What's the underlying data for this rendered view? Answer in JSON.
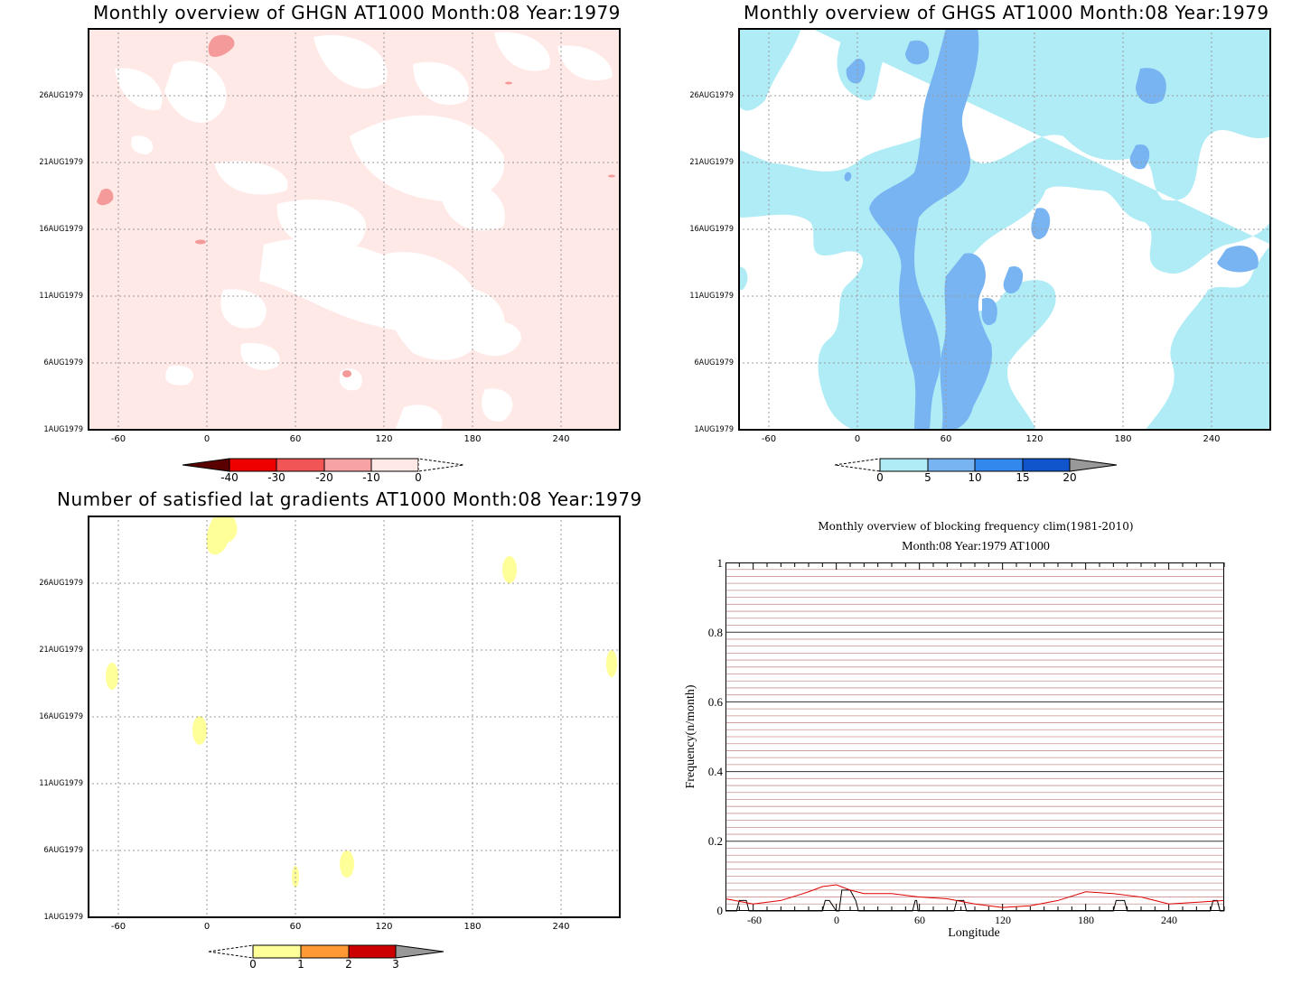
{
  "colors": {
    "ghgn_fill": "#ffe9e6",
    "ghgn_patch": "#f59a9a",
    "ghgs_light": "#b0ecf5",
    "ghgs_mid": "#78b4f2",
    "sat_yellow": "#ffff99",
    "grid": "#999999",
    "freq_line": "#dd0000",
    "hline": "#c99090"
  },
  "panels": {
    "ghgn": {
      "title": "Monthly overview of GHGN AT1000 Month:08 Year:1979",
      "colorbar_labels": [
        "-40",
        "-30",
        "-20",
        "-10",
        "0"
      ]
    },
    "ghgs": {
      "title": "Monthly overview of GHGS AT1000 Month:08 Year:1979",
      "colorbar_labels": [
        "0",
        "5",
        "10",
        "15",
        "20"
      ]
    },
    "sat": {
      "title": "Number of satisfied lat gradients AT1000 Month:08 Year:1979",
      "colorbar_labels": [
        "0",
        "1",
        "2",
        "3"
      ]
    },
    "freq": {
      "title": "Monthly overview of blocking frequency clim(1981-2010)",
      "subtitle": "Month:08 Year:1979  AT1000",
      "ylabel": "Frequency(n/month)",
      "xlabel": "Longitude",
      "yticks": [
        "1",
        "0.8",
        "0.6",
        "0.4",
        "0.2",
        "0"
      ],
      "xticks": [
        "-60",
        "0",
        "60",
        "120",
        "180",
        "240"
      ]
    }
  },
  "date_ticks": [
    "26AUG1979",
    "21AUG1979",
    "16AUG1979",
    "11AUG1979",
    "6AUG1979",
    "1AUG1979"
  ],
  "lon_ticks": [
    "-60",
    "0",
    "60",
    "120",
    "180",
    "240"
  ],
  "chart_data": [
    {
      "type": "heatmap",
      "title": "Monthly overview of GHGN AT1000 Month:08 Year:1979",
      "x_axis": "longitude",
      "xlim": [
        -80,
        280
      ],
      "y_axis": "date",
      "ylim": [
        "1AUG1979",
        "31AUG1979"
      ],
      "levels": [
        -40,
        -30,
        -20,
        -10,
        0
      ],
      "description_values": "mostly -10 to 0 with small patches -20 to -10",
      "grid": true
    },
    {
      "type": "heatmap",
      "title": "Monthly overview of GHGS AT1000 Month:08 Year:1979",
      "x_axis": "longitude",
      "xlim": [
        -80,
        280
      ],
      "y_axis": "date",
      "ylim": [
        "1AUG1979",
        "31AUG1979"
      ],
      "levels": [
        0,
        5,
        10,
        15,
        20
      ],
      "grid": true
    },
    {
      "type": "heatmap",
      "title": "Number of satisfied lat gradients AT1000 Month:08 Year:1979",
      "x_axis": "longitude",
      "xlim": [
        -80,
        280
      ],
      "y_axis": "date",
      "ylim": [
        "1AUG1979",
        "31AUG1979"
      ],
      "levels": [
        0,
        1,
        2,
        3
      ],
      "grid": true
    },
    {
      "type": "line",
      "title": "Monthly overview of blocking frequency clim(1981-2010)",
      "subtitle": "Month:08 Year:1979  AT1000",
      "xlabel": "Longitude",
      "ylabel": "Frequency(n/month)",
      "xlim": [
        -80,
        280
      ],
      "ylim": [
        0,
        1
      ],
      "series": [
        {
          "x": [
            -80,
            -60,
            -40,
            -20,
            -10,
            0,
            10,
            20,
            40,
            60,
            80,
            100,
            120,
            140,
            160,
            180,
            200,
            220,
            240,
            260,
            280
          ],
          "y": [
            0.035,
            0.02,
            0.03,
            0.055,
            0.07,
            0.075,
            0.06,
            0.05,
            0.05,
            0.04,
            0.035,
            0.02,
            0.01,
            0.015,
            0.03,
            0.055,
            0.05,
            0.04,
            0.02,
            0.025,
            0.03
          ]
        },
        {
          "x": [
            -80,
            -72,
            -70,
            -65,
            -63,
            -60,
            -10,
            -8,
            -5,
            0,
            2,
            4,
            6,
            10,
            14,
            16,
            18,
            55,
            57,
            58,
            59,
            60,
            85,
            87,
            92,
            94,
            96,
            200,
            202,
            208,
            210,
            212,
            270,
            272,
            275,
            277,
            280
          ],
          "y": [
            0,
            0,
            0.03,
            0.03,
            0,
            0,
            0,
            0.03,
            0.03,
            0,
            0,
            0.06,
            0.06,
            0.06,
            0.03,
            0,
            0,
            0,
            0.03,
            0.03,
            0,
            0,
            0,
            0.03,
            0.03,
            0,
            0,
            0,
            0.03,
            0.03,
            0,
            0,
            0,
            0.03,
            0.03,
            0,
            0
          ]
        }
      ],
      "grid": true
    }
  ]
}
